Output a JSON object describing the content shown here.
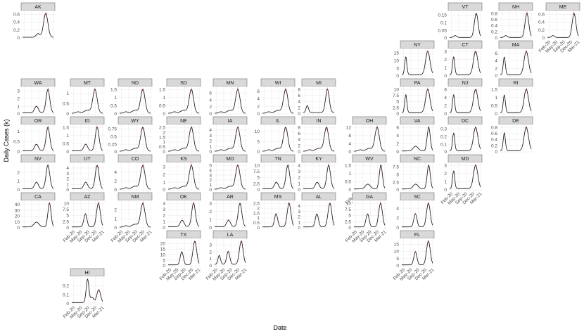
{
  "chart_data": {
    "type": "line",
    "xlabel": "Date",
    "ylabel": "Daily Cases (k)",
    "x_tick_labels": [
      "Feb-20",
      "May-20",
      "Sep-20",
      "Dec-20",
      "Mar-21"
    ],
    "colors": {
      "raw": "#f08080",
      "smooth": "#1a1a1a",
      "strip": "#d9d9d9"
    },
    "panels": [
      {
        "state": "AK",
        "ticks": [
          0,
          0.2,
          0.4,
          0.6
        ],
        "peak": 0.62,
        "shape": "ak",
        "show_x": false
      },
      {
        "state": "VT",
        "ticks": [
          0,
          0.05,
          0.1,
          0.15
        ],
        "peak": 0.16,
        "shape": "ne",
        "show_x": false
      },
      {
        "state": "NH",
        "ticks": [
          0,
          0.2,
          0.4,
          0.6,
          0.8
        ],
        "peak": 0.8,
        "shape": "ne",
        "show_x": false
      },
      {
        "state": "ME",
        "ticks": [
          0,
          0.2,
          0.4,
          0.6
        ],
        "peak": 0.62,
        "shape": "ne",
        "show_x": true
      },
      {
        "state": "NY",
        "ticks": [
          0,
          5,
          10,
          15
        ],
        "peak": 16,
        "shape": "ny",
        "show_x": false
      },
      {
        "state": "CT",
        "ticks": [
          0,
          1,
          2,
          3
        ],
        "peak": 3,
        "shape": "ny",
        "show_x": false
      },
      {
        "state": "MA",
        "ticks": [
          0,
          2,
          4,
          6
        ],
        "peak": 6.5,
        "shape": "ny",
        "show_x": false
      },
      {
        "state": "WA",
        "ticks": [
          0,
          1,
          2,
          3
        ],
        "peak": 3.2,
        "shape": "wave3",
        "show_x": false
      },
      {
        "state": "MT",
        "ticks": [
          0,
          0.5,
          1
        ],
        "peak": 1.2,
        "shape": "fall",
        "show_x": false
      },
      {
        "state": "ND",
        "ticks": [
          0,
          0.5,
          1,
          1.5
        ],
        "peak": 1.5,
        "shape": "fall",
        "show_x": false
      },
      {
        "state": "SD",
        "ticks": [
          0,
          0.5,
          1,
          1.5
        ],
        "peak": 1.5,
        "shape": "fall",
        "show_x": false
      },
      {
        "state": "MN",
        "ticks": [
          0,
          2,
          4,
          6
        ],
        "peak": 7,
        "shape": "fall",
        "show_x": false
      },
      {
        "state": "WI",
        "ticks": [
          0,
          2,
          4,
          6
        ],
        "peak": 6.5,
        "shape": "fall",
        "show_x": false
      },
      {
        "state": "MI",
        "ticks": [
          0,
          2,
          4,
          6,
          8
        ],
        "peak": 8,
        "shape": "mi",
        "show_x": false
      },
      {
        "state": "PA",
        "ticks": [
          0,
          2.5,
          5,
          7.5,
          10
        ],
        "peak": 10,
        "shape": "ny",
        "show_x": false
      },
      {
        "state": "NJ",
        "ticks": [
          0,
          2,
          4,
          6
        ],
        "peak": 6,
        "shape": "ny",
        "show_x": false
      },
      {
        "state": "RI",
        "ticks": [
          0,
          0.5,
          1,
          1.5
        ],
        "peak": 1.5,
        "shape": "ny",
        "show_x": false
      },
      {
        "state": "OR",
        "ticks": [
          0,
          0.5,
          1
        ],
        "peak": 1.2,
        "shape": "wave3",
        "show_x": false
      },
      {
        "state": "ID",
        "ticks": [
          0,
          0.5,
          1,
          1.5
        ],
        "peak": 1.5,
        "shape": "wave3",
        "show_x": false
      },
      {
        "state": "WY",
        "ticks": [
          0,
          0.25,
          0.5,
          0.75
        ],
        "peak": 0.8,
        "shape": "fall",
        "show_x": false
      },
      {
        "state": "NE",
        "ticks": [
          0,
          0.5,
          1,
          1.5,
          2,
          2.5
        ],
        "peak": 2.5,
        "shape": "fall",
        "show_x": false
      },
      {
        "state": "IA",
        "ticks": [
          0,
          1,
          2,
          3,
          4
        ],
        "peak": 4.5,
        "shape": "fall",
        "show_x": false
      },
      {
        "state": "IL",
        "ticks": [
          0,
          5,
          10
        ],
        "peak": 12,
        "shape": "fall",
        "show_x": false
      },
      {
        "state": "IN",
        "ticks": [
          0,
          2,
          4,
          6,
          8
        ],
        "peak": 8,
        "shape": "fall",
        "show_x": false
      },
      {
        "state": "OH",
        "ticks": [
          0,
          4,
          8,
          12
        ],
        "peak": 12,
        "shape": "fall",
        "show_x": false
      },
      {
        "state": "VA",
        "ticks": [
          0,
          2,
          4,
          6
        ],
        "peak": 6,
        "shape": "late",
        "show_x": false
      },
      {
        "state": "DC",
        "ticks": [
          0,
          0.1,
          0.2,
          0.3
        ],
        "peak": 0.32,
        "shape": "ny",
        "show_x": false
      },
      {
        "state": "DE",
        "ticks": [
          0,
          0.2,
          0.4,
          0.6,
          0.8
        ],
        "peak": 0.8,
        "shape": "ny",
        "show_x": false
      },
      {
        "state": "NV",
        "ticks": [
          0,
          1,
          2
        ],
        "peak": 2.8,
        "shape": "wave3",
        "show_x": false
      },
      {
        "state": "UT",
        "ticks": [
          0,
          1,
          2,
          3,
          4
        ],
        "peak": 4.5,
        "shape": "wave3",
        "show_x": false
      },
      {
        "state": "CO",
        "ticks": [
          0,
          2,
          4
        ],
        "peak": 5.5,
        "shape": "fall",
        "show_x": false
      },
      {
        "state": "KS",
        "ticks": [
          0,
          1,
          2,
          3
        ],
        "peak": 3.2,
        "shape": "fall",
        "show_x": false
      },
      {
        "state": "MO",
        "ticks": [
          0,
          1,
          2,
          3,
          4,
          5
        ],
        "peak": 5,
        "shape": "fall",
        "show_x": false
      },
      {
        "state": "TN",
        "ticks": [
          0,
          2.5,
          5,
          7.5,
          10
        ],
        "peak": 10,
        "shape": "wave3",
        "show_x": false
      },
      {
        "state": "KY",
        "ticks": [
          0,
          1,
          2,
          3,
          4
        ],
        "peak": 4,
        "shape": "wave3",
        "show_x": false
      },
      {
        "state": "WV",
        "ticks": [
          0,
          0.5,
          1,
          1.5
        ],
        "peak": 1.5,
        "shape": "late",
        "show_x": true
      },
      {
        "state": "NC",
        "ticks": [
          0,
          2.5,
          5,
          7.5
        ],
        "peak": 8,
        "shape": "late",
        "show_x": false
      },
      {
        "state": "MD",
        "ticks": [
          0,
          1,
          2,
          3
        ],
        "peak": 3,
        "shape": "ny",
        "show_x": true
      },
      {
        "state": "CA",
        "ticks": [
          0,
          10,
          20,
          30,
          40
        ],
        "peak": 42,
        "shape": "late",
        "show_x": false
      },
      {
        "state": "AZ",
        "ticks": [
          0,
          2.5,
          5,
          7.5,
          10
        ],
        "peak": 10,
        "shape": "sun",
        "show_x": true
      },
      {
        "state": "NM",
        "ticks": [
          0,
          1,
          2
        ],
        "peak": 2.7,
        "shape": "fall",
        "show_x": true
      },
      {
        "state": "OK",
        "ticks": [
          0,
          1,
          2,
          3,
          4
        ],
        "peak": 4,
        "shape": "wave3",
        "show_x": false
      },
      {
        "state": "AR",
        "ticks": [
          0,
          1,
          2,
          3
        ],
        "peak": 3,
        "shape": "wave3",
        "show_x": false
      },
      {
        "state": "MS",
        "ticks": [
          0,
          0.5,
          1,
          1.5,
          2,
          2.5
        ],
        "peak": 2.5,
        "shape": "sun",
        "show_x": false
      },
      {
        "state": "AL",
        "ticks": [
          0,
          1,
          2,
          3,
          4
        ],
        "peak": 4.5,
        "shape": "sun",
        "show_x": false
      },
      {
        "state": "GA",
        "ticks": [
          0,
          2.5,
          5,
          7.5,
          10
        ],
        "peak": 10,
        "shape": "sun",
        "show_x": true
      },
      {
        "state": "SC",
        "ticks": [
          0,
          2,
          4
        ],
        "peak": 5,
        "shape": "sun",
        "show_x": false
      },
      {
        "state": "TX",
        "ticks": [
          0,
          5,
          10,
          15,
          20
        ],
        "peak": 22,
        "shape": "sun",
        "show_x": true
      },
      {
        "state": "LA",
        "ticks": [
          0,
          1,
          2,
          3
        ],
        "peak": 3.5,
        "shape": "la",
        "show_x": true
      },
      {
        "state": "FL",
        "ticks": [
          0,
          5,
          10,
          15
        ],
        "peak": 17,
        "shape": "sun",
        "show_x": true
      },
      {
        "state": "HI",
        "ticks": [
          0,
          0.1,
          0.2
        ],
        "peak": 0.27,
        "shape": "hi",
        "show_x": true
      }
    ]
  }
}
